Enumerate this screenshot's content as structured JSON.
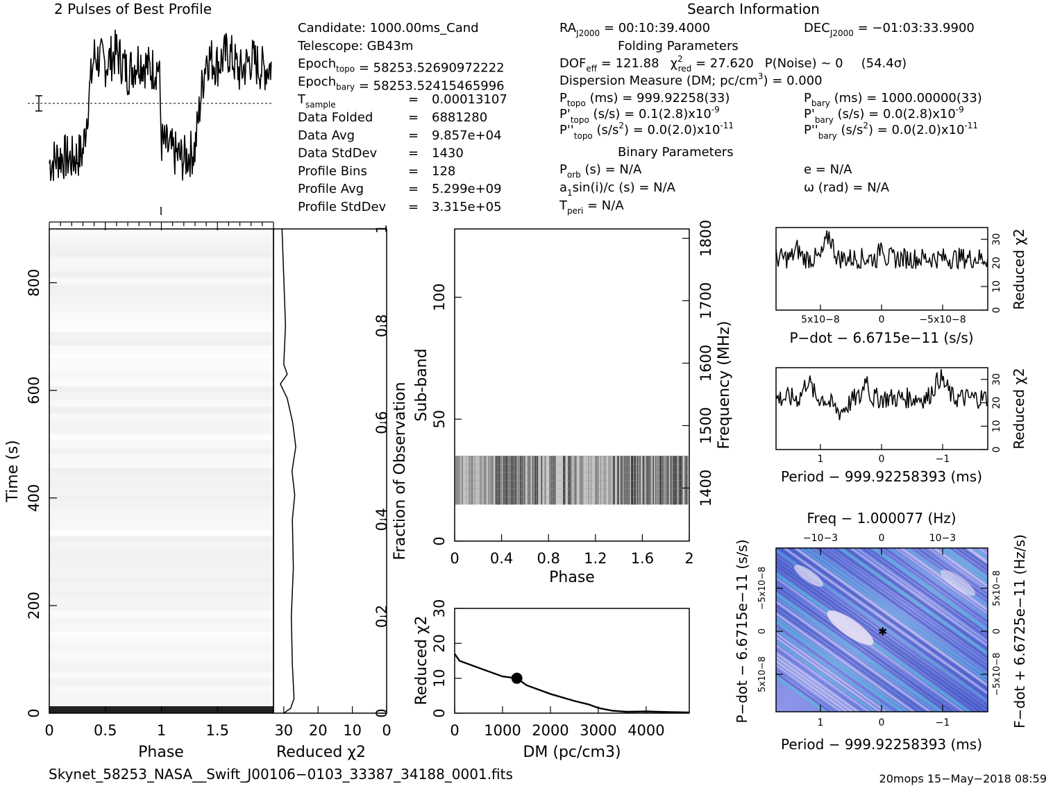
{
  "header": {
    "profile_title": "2 Pulses of Best Profile",
    "search_title": "Search Information",
    "folding_title": "Folding Parameters",
    "binary_title": "Binary Parameters"
  },
  "info_left": [
    {
      "label": "Candidate:  1000.00ms_Cand"
    },
    {
      "label": "Telescope:  GB43m"
    },
    {
      "label": "Epoch",
      "sub": "topo",
      "value": " = 58253.52690972222"
    },
    {
      "label": "Epoch",
      "sub": "bary",
      "value": " = 58253.52415465996"
    },
    {
      "label": "T",
      "sub": "sample",
      "eq": "=",
      "value": "0.00013107"
    },
    {
      "label": "Data Folded",
      "eq": "=",
      "value": "6881280"
    },
    {
      "label": "Data Avg",
      "eq": "=",
      "value": "9.857e+04"
    },
    {
      "label": "Data StdDev",
      "eq": "=",
      "value": "1430"
    },
    {
      "label": "Profile Bins",
      "eq": "=",
      "value": "128"
    },
    {
      "label": "Profile Avg",
      "eq": "=",
      "value": "5.299e+09"
    },
    {
      "label": "Profile StdDev",
      "eq": "=",
      "value": "3.315e+05"
    }
  ],
  "info_mid": {
    "ra": {
      "label": "RA",
      "sub": "J2000",
      "value": " = 00:10:39.4000"
    },
    "dof": "DOF",
    "dof_sub": "eff",
    "dof_value": " = 121.88",
    "chi_label": "χ",
    "chi_sup": "2",
    "chi_sub": "red",
    "chi_value": " = 27.620",
    "pnoise": "P(Noise) ~ 0",
    "sigma": "(54.4σ)",
    "dm_line": "Dispersion Measure (DM; pc/cm",
    "dm_sup": "3",
    "dm_value": ") = 0.000",
    "ptopo": {
      "label": "P",
      "sub": "topo",
      "value": " (ms) =  999.92258(33)"
    },
    "pdtopo": {
      "label": "P'",
      "sub": "topo",
      "value": " (s/s) =  0.1(2.8)x10",
      "sup": "-9"
    },
    "pddtopo": {
      "label": "P''",
      "sub": "topo",
      "value": " (s/s",
      "sup2": "2",
      "value2": ") = 0.0(2.0)x10",
      "sup": "-11"
    },
    "porb": {
      "label": "P",
      "sub": "orb",
      "value": " (s) = N/A"
    },
    "a1": {
      "label": "a",
      "sub": "1",
      "value": "sin(i)/c (s) = N/A"
    },
    "tperi": {
      "label": "T",
      "sub": "peri",
      "value": " = N/A"
    }
  },
  "info_right": {
    "dec": {
      "label": "DEC",
      "sub": "J2000",
      "value": " = −01:03:33.9900"
    },
    "pbary": {
      "label": "P",
      "sub": "bary",
      "value": " (ms) =  1000.00000(33)"
    },
    "pdbary": {
      "label": "P'",
      "sub": "bary",
      "value": " (s/s) = 0.0(2.8)x10",
      "sup": "-9"
    },
    "pddbary": {
      "label": "P''",
      "sub": "bary",
      "value": " (s/s",
      "sup2": "2",
      "value2": ") = 0.0(2.0)x10",
      "sup": "-11"
    },
    "e": "e = N/A",
    "omega": "ω (rad) = N/A"
  },
  "footer": {
    "filename": "Skynet_58253_NASA__Swift_J00106−0103_33387_34188_0001.fits",
    "stamp": "20mops 15−May−2018 08:59"
  },
  "colors": {
    "ink": "#000000",
    "ppdot_base": "#6f7fe0",
    "ppdot_light": "#e8e0f4",
    "ppdot_cyan": "#3fd0d8"
  },
  "chart_data": [
    {
      "type": "line",
      "name_id": "profile",
      "title": "2 Pulses of Best Profile",
      "xlim": [
        0,
        2
      ],
      "note": "two repetitions of the folded pulse profile; low near phase 0-0.35 and 1-1.35, high elsewhere",
      "x": [
        0.0,
        0.1,
        0.2,
        0.3,
        0.35,
        0.4,
        0.5,
        0.6,
        0.7,
        0.8,
        0.9,
        0.98,
        1.0,
        1.1,
        1.2,
        1.3,
        1.35,
        1.4,
        1.5,
        1.6,
        1.7,
        1.8,
        1.9,
        1.98
      ],
      "y": [
        0.18,
        0.22,
        0.2,
        0.24,
        0.55,
        0.8,
        0.75,
        0.82,
        0.7,
        0.78,
        0.72,
        0.74,
        0.3,
        0.24,
        0.2,
        0.26,
        0.55,
        0.8,
        0.75,
        0.82,
        0.7,
        0.78,
        0.72,
        0.74
      ]
    },
    {
      "type": "heatmap",
      "name_id": "time-phase",
      "xlabel": "Phase",
      "ylabel": "Time (s)",
      "xticks": [
        "0",
        "0.5",
        "1",
        "1.5"
      ],
      "yticks": [
        "0",
        "200",
        "400",
        "600",
        "800"
      ],
      "xlim": [
        0,
        2
      ],
      "ylim": [
        0,
        900
      ]
    },
    {
      "type": "line",
      "name_id": "time-chi2",
      "xlabel": "Reduced χ2",
      "xticks": [
        "30",
        "20",
        "10",
        "0"
      ],
      "right_label": "Fraction of Observation",
      "right_ticks": [
        "0",
        "0.2",
        "0.4",
        "0.6",
        "0.8",
        "1"
      ],
      "fraction": [
        0.0,
        0.01,
        0.03,
        0.1,
        0.2,
        0.3,
        0.4,
        0.45,
        0.5,
        0.55,
        0.6,
        0.65,
        0.68,
        0.7,
        0.72,
        0.8,
        0.9,
        1.0
      ],
      "chi2": [
        30.0,
        28.0,
        27.0,
        27.5,
        27.8,
        27.2,
        27.5,
        26.8,
        27.6,
        26.5,
        27.4,
        29.0,
        31.0,
        29.0,
        30.0,
        29.5,
        30.0,
        30.5
      ]
    },
    {
      "type": "heatmap",
      "name_id": "subband-phase",
      "xlabel": "Phase",
      "ylabel": "Sub-band",
      "right_label": "Frequency (MHz)",
      "xticks": [
        "0",
        "0.4",
        "0.8",
        "1.2",
        "1.6",
        "2"
      ],
      "yticks": [
        "0",
        "50",
        "100"
      ],
      "right_ticks": [
        "1400",
        "1500",
        "1600",
        "1700",
        "1800"
      ],
      "xlim": [
        0,
        2
      ],
      "ylim": [
        0,
        128
      ],
      "filled_subbands": [
        15,
        35
      ]
    },
    {
      "type": "line",
      "name_id": "dm-chi2",
      "xlabel": "DM (pc/cm3)",
      "ylabel": "Reduced χ2",
      "xticks": [
        "0",
        "1000",
        "2000",
        "3000",
        "4000"
      ],
      "yticks": [
        "0",
        "10",
        "20",
        "30"
      ],
      "xlim": [
        0,
        4900
      ],
      "ylim": [
        0,
        30
      ],
      "x": [
        0,
        100,
        500,
        1000,
        1300,
        1500,
        2000,
        2500,
        2800,
        3000,
        3300,
        3600,
        4000,
        4500,
        4900
      ],
      "y": [
        17,
        15,
        13,
        10.5,
        10,
        8,
        5.5,
        3.5,
        2.5,
        1.5,
        0.7,
        0.4,
        0.5,
        0.3,
        0.2
      ]
    },
    {
      "type": "line",
      "name_id": "pdot-chi2",
      "xlabel": "P−dot − 6.6715e−11 (s/s)",
      "ylabel": "Reduced χ2",
      "xticks": [
        "5x10−8",
        "0",
        "−5x10−8"
      ],
      "yticks": [
        "0",
        "10",
        "20",
        "30"
      ],
      "ylim": [
        0,
        35
      ]
    },
    {
      "type": "line",
      "name_id": "period-chi2",
      "xlabel": "Period − 999.92258393 (ms)",
      "ylabel": "Reduced χ2",
      "xticks": [
        "1",
        "0",
        "−1"
      ],
      "yticks": [
        "0",
        "10",
        "20",
        "30"
      ],
      "ylim": [
        0,
        35
      ]
    },
    {
      "type": "heatmap",
      "name_id": "p-pdot",
      "title": "Freq − 1.000077 (Hz)",
      "top_ticks": [
        "−10−3",
        "0",
        "10−3"
      ],
      "xlabel": "Period − 999.92258393 (ms)",
      "xticks": [
        "1",
        "0",
        "−1"
      ],
      "ylabel": "P−dot − 6.6715e−11 (s/s)",
      "yticks": [
        "−5x10−8",
        "0",
        "5x10−8"
      ],
      "right_label": "F−dot + 6.6725e−11 (Hz/s)",
      "right_ticks": [
        "5x10−8",
        "0",
        "−5x10−8"
      ]
    }
  ]
}
